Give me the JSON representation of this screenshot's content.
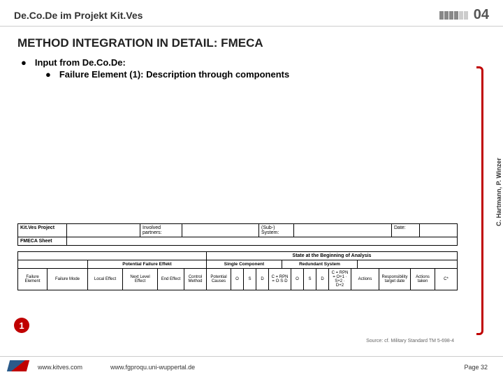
{
  "header": {
    "project_label": "De.Co.De im Projekt Kit.Ves",
    "slide_number": "04"
  },
  "title": "METHOD INTEGRATION IN DETAIL: FMECA",
  "content": {
    "main_bullet": "Input from De.Co.De:",
    "sub_bullet": "Failure Element (1): Description through components"
  },
  "figure": {
    "top_row": {
      "label": "Kit.Ves Project",
      "involved_label": "Involved partners:",
      "sub_system_label": "(Sub-) System:",
      "date_label": "Date:"
    },
    "fmeca_label": "FMECA Sheet",
    "state_header": "State at the Beginning of Analysis",
    "sub_headers": {
      "pfe": "Potential Failure Effekt",
      "sc": "Single Component",
      "rs": "Redundant System"
    },
    "detail_cells": {
      "c1": "Failure Element",
      "c2": "Failure Mode",
      "c3": "Local Effect",
      "c4": "Next Level Effect",
      "c5": "End Effect",
      "c6": "Control Method",
      "c7": "Potential Causes",
      "c8": "O",
      "c9": "S",
      "c10": "D",
      "c11": "C = RPN = O·S·D",
      "c12": "O",
      "c13": "S",
      "c14": "D",
      "c15": "C = RPN = O+1 · S+2 · D+2",
      "c16": "Actions",
      "c17": "Responsibility target date",
      "c18": "Actions taken",
      "c19": "C*"
    },
    "circle_label": "1",
    "source": "Source: cf. Military Standard TM 5-698-4"
  },
  "footer": {
    "url1": "www.kitves.com",
    "url2": "www.fgproqu.uni-wuppertal.de",
    "page": "Page 32"
  },
  "side_credit": "C. Hartmann, P. Winzer",
  "colors": {
    "accent_red": "#c00000",
    "header_gray": "#555555"
  }
}
